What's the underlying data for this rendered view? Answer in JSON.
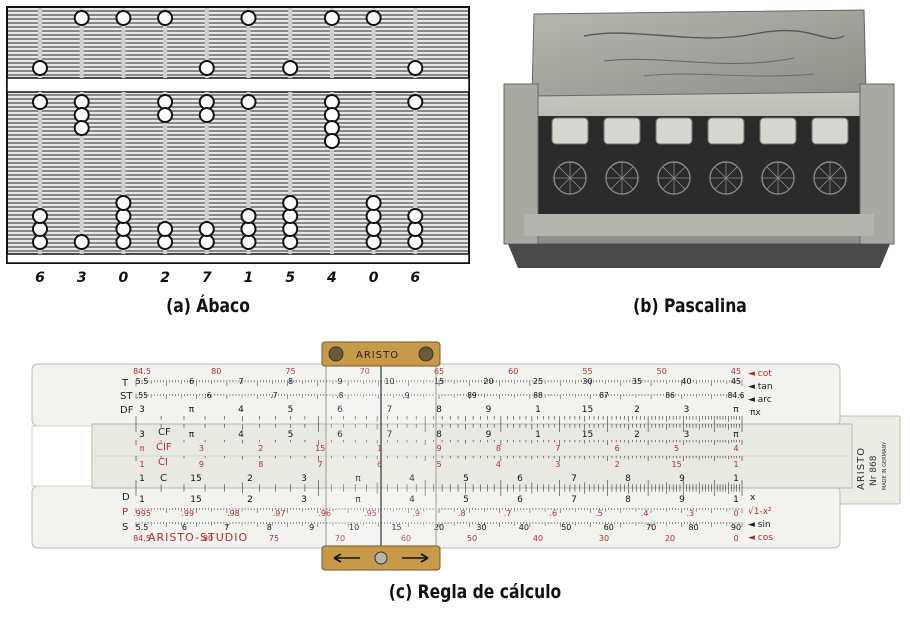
{
  "captions": {
    "abacus": "(a) Ábaco",
    "pascaline": "(b) Pascalina",
    "slide_rule": "(c) Regla de cálculo"
  },
  "abacus": {
    "digits": [
      "6",
      "3",
      "0",
      "2",
      "7",
      "1",
      "5",
      "4",
      "0",
      "6"
    ]
  },
  "slide_rule": {
    "brand": "ARISTO",
    "brand_studio": "ARISTO-STUDIO",
    "model": "Nr 868",
    "made_in": "MADE IN GERMANY",
    "top_scales": [
      "T",
      "ST",
      "DF"
    ],
    "slide_scales": [
      "CF",
      "CIF",
      "CI",
      "C"
    ],
    "bottom_scales": [
      "D",
      "P",
      "S"
    ],
    "right_top_labels": [
      "◄ cot",
      "◄ tan",
      "◄ arc",
      "πx"
    ],
    "right_bottom_labels": [
      "x",
      "√1-x²",
      "◄ sin",
      "◄ cos"
    ],
    "tan_red_numbers": [
      "84.5",
      "80",
      "75",
      "70",
      "65",
      "60",
      "55",
      "50",
      "45"
    ],
    "tan_black_numbers": [
      "5.5",
      "6",
      "7",
      "8",
      "9",
      "10",
      "15",
      "20",
      "25",
      "30",
      "35",
      "40",
      "45"
    ],
    "st_numbers": [
      ".55",
      ".6",
      ".7",
      ".8",
      ".9",
      "89",
      "88",
      "87",
      "86",
      "84.6"
    ],
    "df_numbers": [
      "3",
      "π",
      "4",
      "5",
      "6",
      "7",
      "8",
      "9",
      "1",
      "15",
      "2",
      "3",
      "π"
    ],
    "cf_numbers": [
      "3",
      "π",
      "4",
      "5",
      "6",
      "7",
      "8",
      "9",
      "1",
      "15",
      "2",
      "3",
      "π"
    ],
    "cif_numbers": [
      "π",
      "3",
      "2",
      "15",
      "1",
      "9",
      "8",
      "7",
      "6",
      "5",
      "4"
    ],
    "ci_numbers": [
      "1",
      "9",
      "8",
      "7",
      "6",
      "5",
      "4",
      "3",
      "2",
      "15",
      "1"
    ],
    "c_numbers": [
      "1",
      "15",
      "2",
      "3",
      "π",
      "4",
      "5",
      "6",
      "7",
      "8",
      "9",
      "1"
    ],
    "d_numbers": [
      "1",
      "15",
      "2",
      "3",
      "π",
      "4",
      "5",
      "6",
      "7",
      "8",
      "9",
      "1"
    ],
    "p_numbers": [
      ".995",
      ".99",
      ".98",
      ".97",
      ".96",
      ".95",
      ".9",
      ".8",
      ".7",
      ".6",
      ".5",
      ".4",
      ".3",
      "0"
    ],
    "s_numbers": [
      "5.5",
      "6",
      "7",
      "8",
      "9",
      "10",
      "15",
      "20",
      "30",
      "40",
      "50",
      "60",
      "70",
      "80",
      "90"
    ],
    "cos_numbers": [
      "84.5",
      "80",
      "75",
      "70",
      "60",
      "50",
      "40",
      "30",
      "20",
      "0"
    ]
  },
  "colors": {
    "ink": "#111111",
    "scale_red": "#b0302e",
    "brass": "#c79a4a",
    "rule_body": "#f2f2ef",
    "slide_body": "#e9e9e3"
  }
}
